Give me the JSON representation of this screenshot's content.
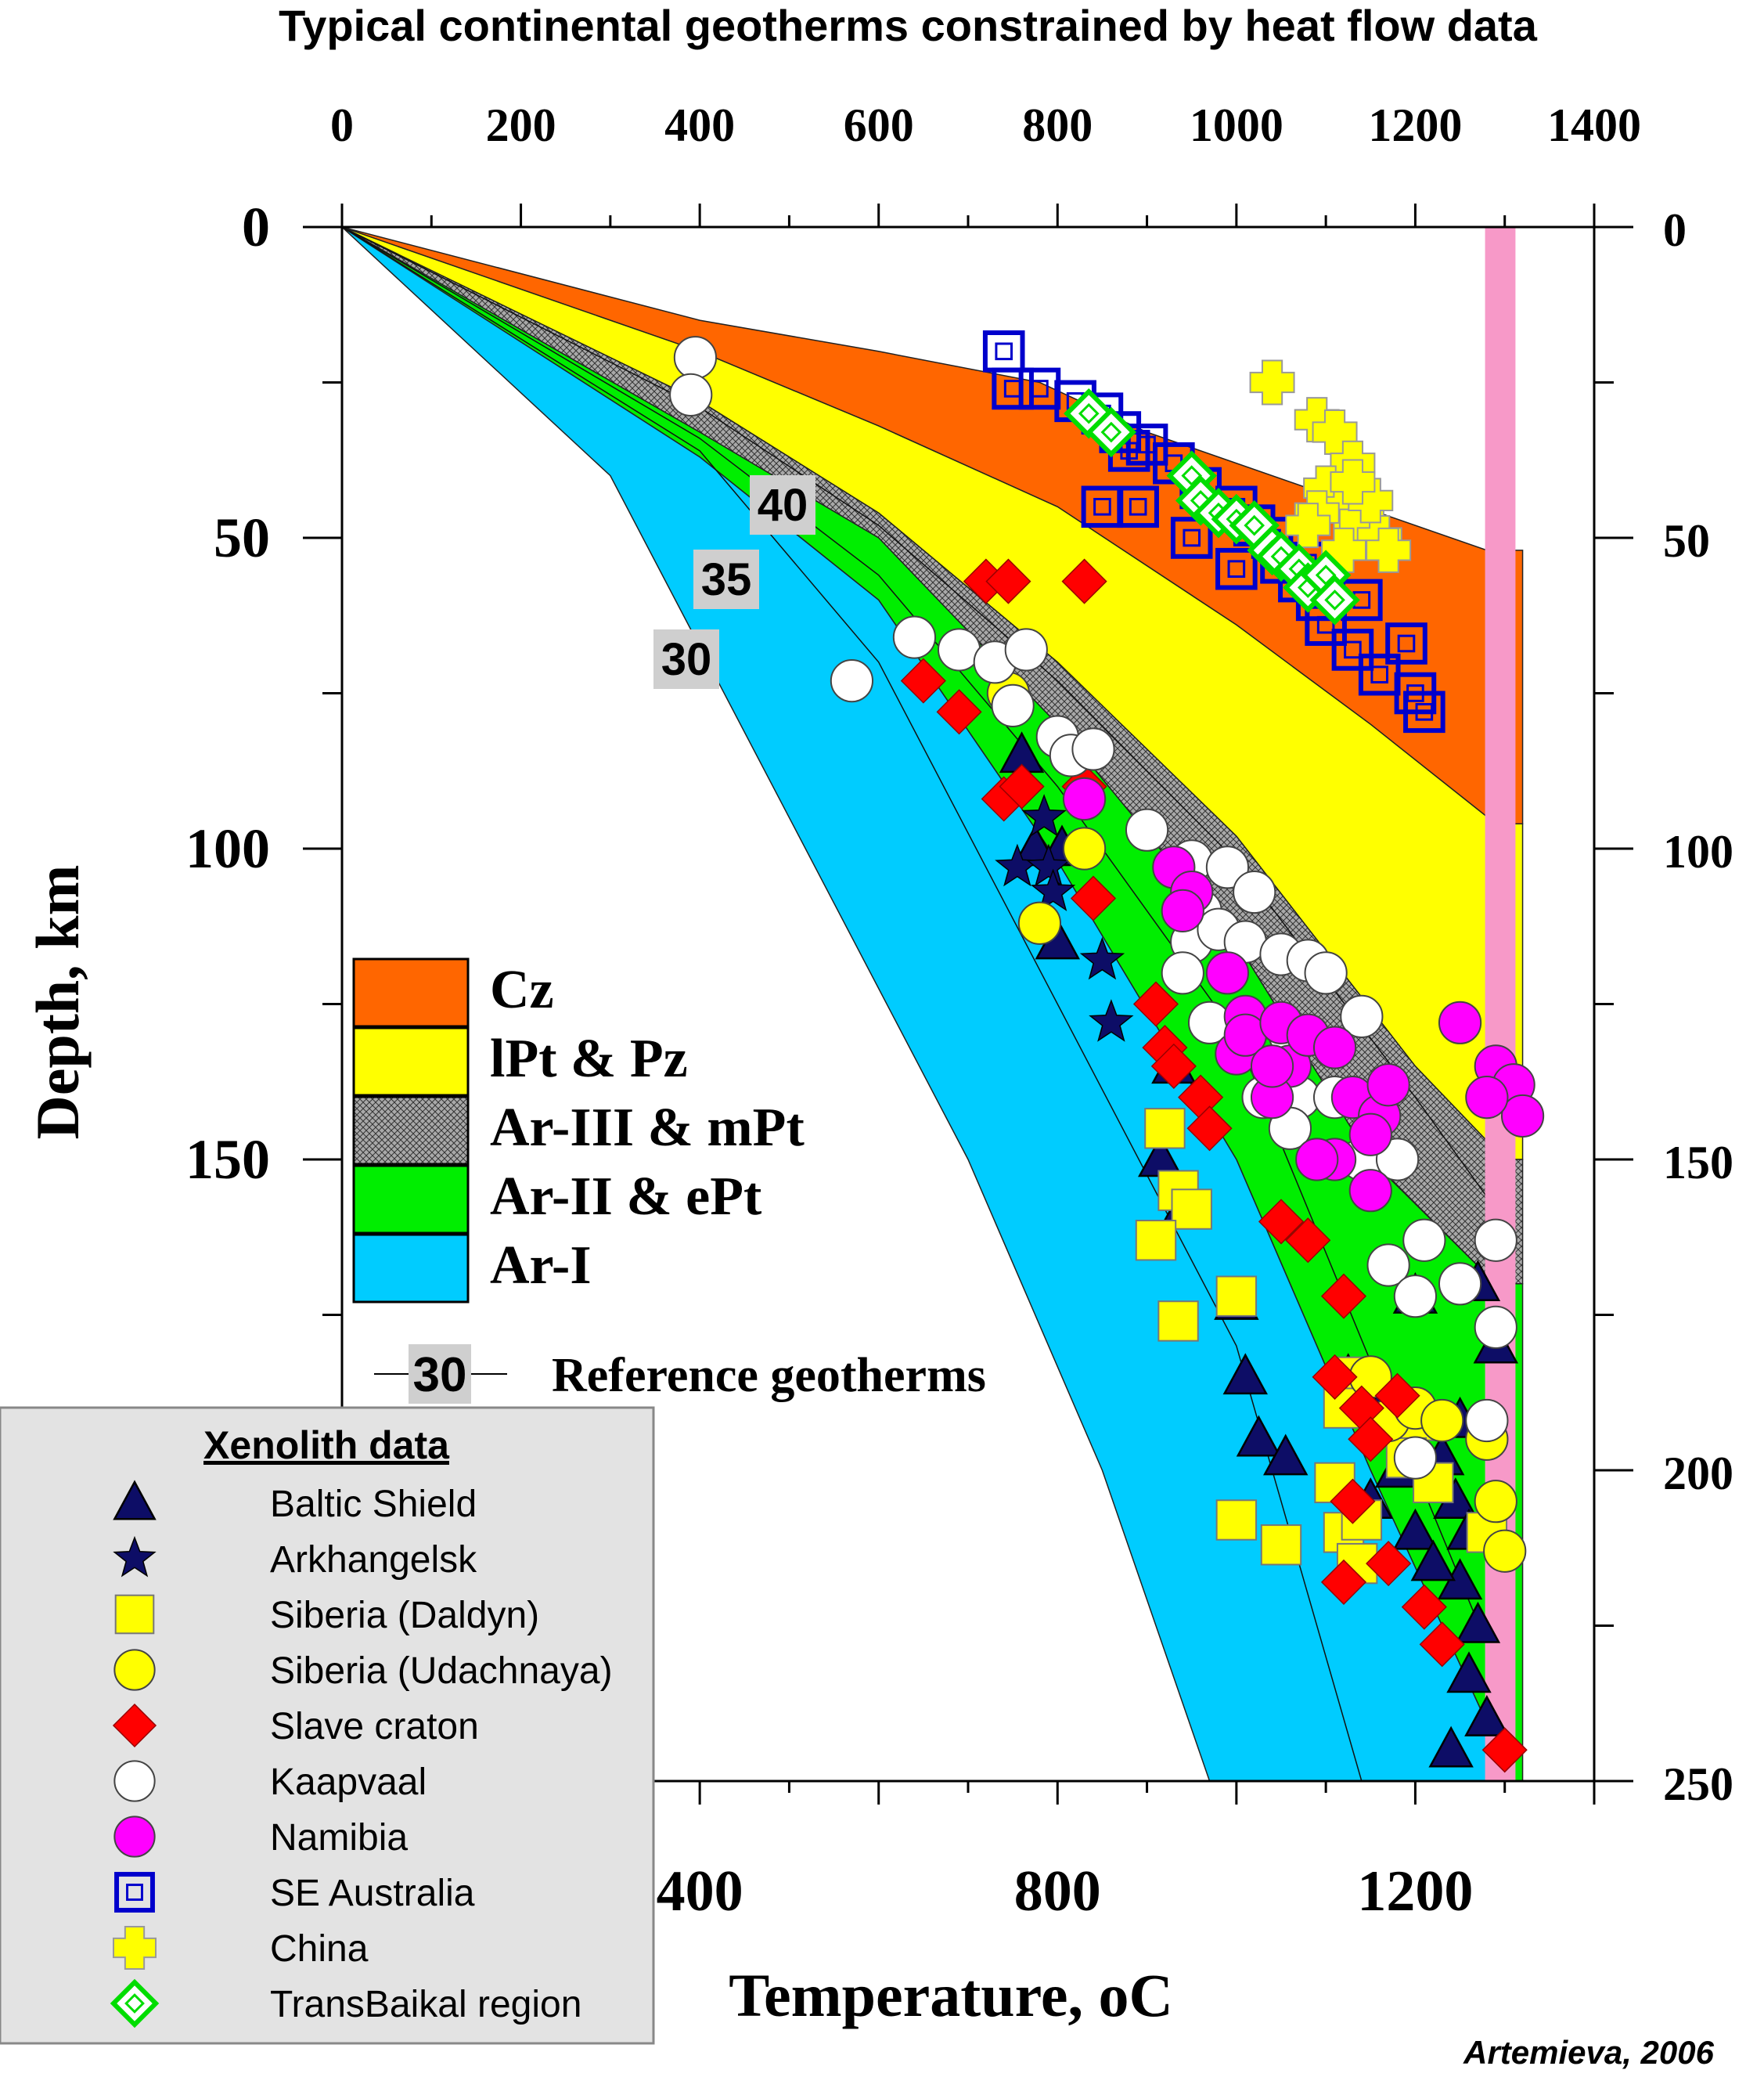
{
  "chart_data": {
    "type": "area",
    "title": "Typical continental geotherms constrained by heat flow data",
    "xlabel": "Temperature, ",
    "xlabel_unit": "oC",
    "ylabel": "Depth, km",
    "xlim": [
      0,
      1400
    ],
    "ylim": [
      250,
      0
    ],
    "x_ticks_top": [
      "0",
      "200",
      "400",
      "600",
      "800",
      "1000",
      "1200",
      "1400"
    ],
    "x_ticks_bottom": [
      "400",
      "800",
      "1200"
    ],
    "y_ticks": [
      "0",
      "50",
      "100",
      "150",
      "200",
      "250"
    ],
    "credit": "Artemieva, 2006",
    "colors": {
      "Cz": "#ff6600",
      "lPt & Pz": "#ffff00",
      "Ar-III & mPt": "#8a8a8a",
      "Ar-II & ePt": "#00ee00",
      "Ar-I": "#00ccff",
      "adiabat": "#f799c8"
    },
    "geotherm_boundaries": [
      {
        "id": "cz_top",
        "points": [
          [
            0,
            0
          ],
          [
            400,
            15
          ],
          [
            600,
            20
          ],
          [
            780,
            25
          ],
          [
            900,
            33
          ],
          [
            1100,
            43
          ],
          [
            1280,
            52
          ]
        ]
      },
      {
        "id": "cz_lpt",
        "points": [
          [
            0,
            0
          ],
          [
            400,
            20
          ],
          [
            600,
            32
          ],
          [
            800,
            45
          ],
          [
            1000,
            64
          ],
          [
            1150,
            80
          ],
          [
            1290,
            96
          ]
        ]
      },
      {
        "id": "lpt_ar3",
        "points": [
          [
            0,
            0
          ],
          [
            400,
            28
          ],
          [
            600,
            46
          ],
          [
            800,
            70
          ],
          [
            1000,
            98
          ],
          [
            1200,
            135
          ],
          [
            1300,
            150
          ]
        ]
      },
      {
        "id": "ar3_ar2",
        "points": [
          [
            0,
            0
          ],
          [
            400,
            33
          ],
          [
            600,
            50
          ],
          [
            800,
            80
          ],
          [
            1000,
            115
          ],
          [
            1150,
            150
          ],
          [
            1290,
            170
          ]
        ]
      },
      {
        "id": "ar2_ar1",
        "points": [
          [
            0,
            0
          ],
          [
            400,
            37
          ],
          [
            600,
            60
          ],
          [
            800,
            102
          ],
          [
            1000,
            150
          ],
          [
            1150,
            200
          ],
          [
            1310,
            250
          ]
        ]
      },
      {
        "id": "ar1_bottom",
        "points": [
          [
            0,
            0
          ],
          [
            300,
            40
          ],
          [
            500,
            95
          ],
          [
            700,
            150
          ],
          [
            850,
            200
          ],
          [
            970,
            250
          ]
        ]
      }
    ],
    "reference_geotherms": [
      {
        "label": "40",
        "points": [
          [
            0,
            0
          ],
          [
            400,
            29
          ],
          [
            600,
            48
          ],
          [
            800,
            73
          ],
          [
            1000,
            102
          ],
          [
            1200,
            140
          ],
          [
            1300,
            160
          ]
        ]
      },
      {
        "label": "35",
        "points": [
          [
            0,
            0
          ],
          [
            400,
            34
          ],
          [
            600,
            56
          ],
          [
            800,
            90
          ],
          [
            1000,
            130
          ],
          [
            1200,
            200
          ],
          [
            1300,
            235
          ]
        ]
      },
      {
        "label": "30",
        "points": [
          [
            0,
            0
          ],
          [
            400,
            36
          ],
          [
            600,
            70
          ],
          [
            800,
            125
          ],
          [
            1000,
            180
          ],
          [
            1140,
            250
          ]
        ]
      }
    ],
    "legend_layers": [
      "Cz",
      "lPt & Pz",
      "Ar-III & mPt",
      "Ar-II & ePt",
      "Ar-I"
    ],
    "legend_reference": {
      "label": "30",
      "text": "Reference geotherms"
    },
    "xenolith_title": "Xenolith data",
    "series": [
      {
        "name": "Baltic Shield",
        "marker": "triangle",
        "color": "#0d0d66",
        "points": [
          [
            760,
            85
          ],
          [
            775,
            100
          ],
          [
            805,
            100
          ],
          [
            800,
            115
          ],
          [
            930,
            135
          ],
          [
            915,
            150
          ],
          [
            940,
            158
          ],
          [
            1000,
            173
          ],
          [
            1010,
            185
          ],
          [
            1025,
            195
          ],
          [
            1055,
            198
          ],
          [
            1125,
            185
          ],
          [
            1170,
            188
          ],
          [
            1200,
            172
          ],
          [
            1150,
            205
          ],
          [
            1180,
            200
          ],
          [
            1200,
            210
          ],
          [
            1230,
            198
          ],
          [
            1245,
            205
          ],
          [
            1260,
            210
          ],
          [
            1290,
            210
          ],
          [
            1250,
            218
          ],
          [
            1270,
            225
          ],
          [
            1260,
            233
          ],
          [
            1280,
            240
          ],
          [
            1240,
            245
          ],
          [
            1270,
            170
          ],
          [
            1290,
            180
          ],
          [
            1250,
            192
          ],
          [
            1220,
            215
          ]
        ]
      },
      {
        "name": "Arkhangelsk",
        "marker": "star",
        "color": "#0d0d66",
        "points": [
          [
            755,
            103
          ],
          [
            790,
            103
          ],
          [
            795,
            107
          ],
          [
            785,
            95
          ],
          [
            850,
            118
          ],
          [
            860,
            128
          ]
        ]
      },
      {
        "name": "Siberia (Daldyn)",
        "marker": "square",
        "color": "#ffff00",
        "points": [
          [
            920,
            145
          ],
          [
            935,
            155
          ],
          [
            950,
            158
          ],
          [
            910,
            163
          ],
          [
            935,
            176
          ],
          [
            1000,
            172
          ],
          [
            1130,
            185
          ],
          [
            1120,
            190
          ],
          [
            1110,
            202
          ],
          [
            1120,
            210
          ],
          [
            1000,
            208
          ],
          [
            1050,
            212
          ],
          [
            1140,
            208
          ],
          [
            1135,
            215
          ],
          [
            1200,
            192
          ],
          [
            1190,
            198
          ],
          [
            1220,
            202
          ],
          [
            1280,
            210
          ]
        ]
      },
      {
        "name": "Siberia (Udachnaya)",
        "marker": "circle",
        "color": "#ffff00",
        "points": [
          [
            745,
            75
          ],
          [
            780,
            112
          ],
          [
            830,
            100
          ],
          [
            1150,
            185
          ],
          [
            1170,
            192
          ],
          [
            1200,
            190
          ],
          [
            1230,
            192
          ],
          [
            1280,
            195
          ],
          [
            1290,
            205
          ],
          [
            1300,
            213
          ]
        ]
      },
      {
        "name": "Slave craton",
        "marker": "diamond",
        "color": "#ff0000",
        "points": [
          [
            720,
            57
          ],
          [
            745,
            57
          ],
          [
            830,
            57
          ],
          [
            650,
            73
          ],
          [
            690,
            78
          ],
          [
            740,
            92
          ],
          [
            760,
            90
          ],
          [
            830,
            90
          ],
          [
            840,
            108
          ],
          [
            910,
            125
          ],
          [
            920,
            132
          ],
          [
            930,
            135
          ],
          [
            960,
            140
          ],
          [
            970,
            145
          ],
          [
            1050,
            160
          ],
          [
            1080,
            163
          ],
          [
            1120,
            172
          ],
          [
            1140,
            190
          ],
          [
            1150,
            195
          ],
          [
            1180,
            188
          ],
          [
            1120,
            218
          ],
          [
            1170,
            215
          ],
          [
            1210,
            222
          ],
          [
            1230,
            228
          ],
          [
            1300,
            245
          ],
          [
            1110,
            185
          ],
          [
            1130,
            205
          ]
        ]
      },
      {
        "name": "Kaapvaal",
        "marker": "circle",
        "color": "#ffffff",
        "points": [
          [
            395,
            21
          ],
          [
            390,
            27
          ],
          [
            570,
            73
          ],
          [
            640,
            66
          ],
          [
            690,
            68
          ],
          [
            730,
            70
          ],
          [
            765,
            68
          ],
          [
            750,
            77
          ],
          [
            800,
            82
          ],
          [
            815,
            85
          ],
          [
            840,
            84
          ],
          [
            900,
            97
          ],
          [
            950,
            102
          ],
          [
            990,
            103
          ],
          [
            1020,
            107
          ],
          [
            960,
            110
          ],
          [
            950,
            115
          ],
          [
            940,
            120
          ],
          [
            980,
            113
          ],
          [
            1010,
            115
          ],
          [
            1050,
            117
          ],
          [
            1080,
            118
          ],
          [
            1100,
            120
          ],
          [
            1140,
            127
          ],
          [
            970,
            128
          ],
          [
            1060,
            130
          ],
          [
            1070,
            140
          ],
          [
            1110,
            140
          ],
          [
            1140,
            150
          ],
          [
            1180,
            150
          ],
          [
            1210,
            163
          ],
          [
            1170,
            167
          ],
          [
            1250,
            170
          ],
          [
            1200,
            172
          ],
          [
            1290,
            163
          ],
          [
            1290,
            177
          ],
          [
            1280,
            192
          ],
          [
            1200,
            198
          ],
          [
            1060,
            145
          ],
          [
            1030,
            140
          ]
        ]
      },
      {
        "name": "Namibia",
        "marker": "circle",
        "color": "#ff00ff",
        "points": [
          [
            830,
            92
          ],
          [
            930,
            103
          ],
          [
            950,
            107
          ],
          [
            940,
            110
          ],
          [
            990,
            120
          ],
          [
            1010,
            127
          ],
          [
            1000,
            133
          ],
          [
            1010,
            130
          ],
          [
            1050,
            128
          ],
          [
            1060,
            135
          ],
          [
            1040,
            140
          ],
          [
            1040,
            135
          ],
          [
            1080,
            130
          ],
          [
            1110,
            132
          ],
          [
            1130,
            140
          ],
          [
            1160,
            143
          ],
          [
            1170,
            138
          ],
          [
            1150,
            146
          ],
          [
            1110,
            150
          ],
          [
            1150,
            155
          ],
          [
            1090,
            150
          ],
          [
            1250,
            128
          ],
          [
            1290,
            135
          ],
          [
            1310,
            138
          ],
          [
            1320,
            143
          ],
          [
            1280,
            140
          ]
        ]
      },
      {
        "name": "SE Australia",
        "marker": "square-open",
        "color": "#0000cc",
        "points": [
          [
            740,
            20
          ],
          [
            750,
            26
          ],
          [
            780,
            26
          ],
          [
            820,
            28
          ],
          [
            850,
            30
          ],
          [
            870,
            33
          ],
          [
            880,
            36
          ],
          [
            900,
            35
          ],
          [
            930,
            38
          ],
          [
            960,
            42
          ],
          [
            1000,
            45
          ],
          [
            1020,
            48
          ],
          [
            1040,
            50
          ],
          [
            1050,
            54
          ],
          [
            1070,
            57
          ],
          [
            1090,
            60
          ],
          [
            1100,
            64
          ],
          [
            1130,
            68
          ],
          [
            1160,
            72
          ],
          [
            1190,
            67
          ],
          [
            1200,
            75
          ],
          [
            1210,
            78
          ],
          [
            850,
            45
          ],
          [
            890,
            45
          ],
          [
            950,
            50
          ],
          [
            1000,
            55
          ],
          [
            1080,
            54
          ],
          [
            1140,
            60
          ]
        ]
      },
      {
        "name": "China",
        "marker": "plus",
        "color": "#ffff00",
        "points": [
          [
            1040,
            25
          ],
          [
            1090,
            31
          ],
          [
            1110,
            33
          ],
          [
            1130,
            38
          ],
          [
            1100,
            42
          ],
          [
            1120,
            45
          ],
          [
            1140,
            47
          ],
          [
            1160,
            50
          ],
          [
            1090,
            46
          ],
          [
            1080,
            48
          ],
          [
            1150,
            44
          ],
          [
            1170,
            52
          ],
          [
            1120,
            52
          ],
          [
            1130,
            41
          ]
        ]
      },
      {
        "name": "TransBaikal region",
        "marker": "diamond-open",
        "color": "#00dd00",
        "points": [
          [
            835,
            30
          ],
          [
            860,
            33
          ],
          [
            950,
            40
          ],
          [
            960,
            44
          ],
          [
            980,
            46
          ],
          [
            1000,
            47
          ],
          [
            1020,
            48
          ],
          [
            1040,
            52
          ],
          [
            1050,
            53
          ],
          [
            1070,
            55
          ],
          [
            1080,
            58
          ],
          [
            1100,
            56
          ],
          [
            1110,
            60
          ]
        ]
      }
    ]
  }
}
